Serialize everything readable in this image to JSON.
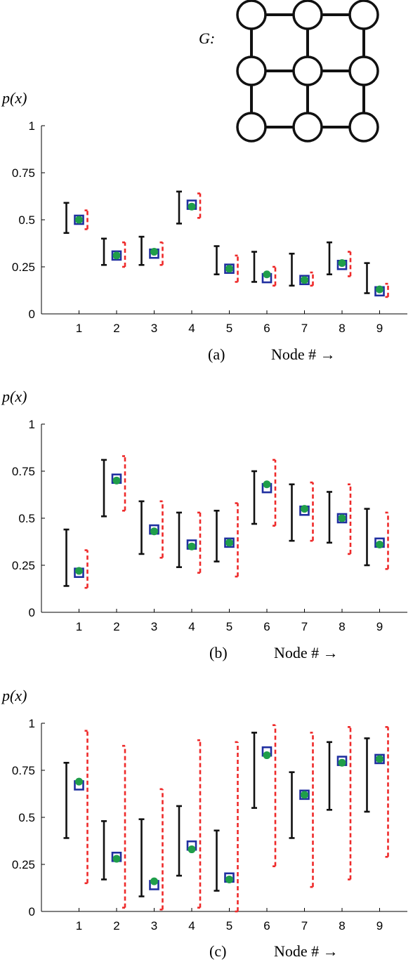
{
  "graph": {
    "label": "G:",
    "rows": 3,
    "cols": 3
  },
  "colors": {
    "interval_black": "#111111",
    "interval_red": "#ee2a2a",
    "square": "#1f2fa0",
    "circle": "#1f9e4a"
  },
  "chart_data": [
    {
      "type": "errorbar",
      "ylabel": "p(x)",
      "caption": "(a)",
      "xlabel": "Node # →",
      "categories": [
        "1",
        "2",
        "3",
        "4",
        "5",
        "6",
        "7",
        "8",
        "9"
      ],
      "ylim": [
        0,
        1
      ],
      "yticks": [
        "0",
        "0.25",
        "0.5",
        "0.75",
        "1"
      ],
      "black_interval": [
        [
          0.43,
          0.59
        ],
        [
          0.26,
          0.4
        ],
        [
          0.26,
          0.41
        ],
        [
          0.48,
          0.65
        ],
        [
          0.21,
          0.36
        ],
        [
          0.17,
          0.33
        ],
        [
          0.15,
          0.32
        ],
        [
          0.21,
          0.38
        ],
        [
          0.11,
          0.27
        ]
      ],
      "red_interval": [
        [
          0.45,
          0.55
        ],
        [
          0.25,
          0.38
        ],
        [
          0.26,
          0.38
        ],
        [
          0.51,
          0.64
        ],
        [
          0.17,
          0.31
        ],
        [
          0.15,
          0.25
        ],
        [
          0.15,
          0.22
        ],
        [
          0.2,
          0.33
        ],
        [
          0.09,
          0.16
        ]
      ],
      "squares": [
        0.5,
        0.31,
        0.32,
        0.58,
        0.24,
        0.19,
        0.18,
        0.26,
        0.12
      ],
      "circles": [
        0.5,
        0.31,
        0.33,
        0.57,
        0.24,
        0.21,
        0.18,
        0.27,
        0.13
      ]
    },
    {
      "type": "errorbar",
      "ylabel": "p(x)",
      "caption": "(b)",
      "xlabel": "Node # →",
      "categories": [
        "1",
        "2",
        "3",
        "4",
        "5",
        "6",
        "7",
        "8",
        "9"
      ],
      "ylim": [
        0,
        1
      ],
      "yticks": [
        "0",
        "0.25",
        "0.5",
        "0.75",
        "1"
      ],
      "black_interval": [
        [
          0.14,
          0.44
        ],
        [
          0.51,
          0.81
        ],
        [
          0.31,
          0.59
        ],
        [
          0.24,
          0.53
        ],
        [
          0.27,
          0.54
        ],
        [
          0.47,
          0.75
        ],
        [
          0.38,
          0.68
        ],
        [
          0.37,
          0.64
        ],
        [
          0.25,
          0.55
        ]
      ],
      "red_interval": [
        [
          0.13,
          0.33
        ],
        [
          0.54,
          0.83
        ],
        [
          0.29,
          0.59
        ],
        [
          0.21,
          0.53
        ],
        [
          0.19,
          0.58
        ],
        [
          0.46,
          0.81
        ],
        [
          0.38,
          0.69
        ],
        [
          0.31,
          0.68
        ],
        [
          0.23,
          0.53
        ]
      ],
      "squares": [
        0.21,
        0.71,
        0.44,
        0.36,
        0.37,
        0.66,
        0.54,
        0.5,
        0.37
      ],
      "circles": [
        0.22,
        0.7,
        0.43,
        0.35,
        0.37,
        0.68,
        0.55,
        0.5,
        0.36
      ]
    },
    {
      "type": "errorbar",
      "ylabel": "p(x)",
      "caption": "(c)",
      "xlabel": "Node # →",
      "categories": [
        "1",
        "2",
        "3",
        "4",
        "5",
        "6",
        "7",
        "8",
        "9"
      ],
      "ylim": [
        0,
        1
      ],
      "yticks": [
        "0",
        "0.25",
        "0.5",
        "0.75",
        "1"
      ],
      "black_interval": [
        [
          0.39,
          0.79
        ],
        [
          0.17,
          0.48
        ],
        [
          0.08,
          0.49
        ],
        [
          0.19,
          0.56
        ],
        [
          0.11,
          0.43
        ],
        [
          0.55,
          0.95
        ],
        [
          0.39,
          0.74
        ],
        [
          0.54,
          0.9
        ],
        [
          0.53,
          0.92
        ]
      ],
      "red_interval": [
        [
          0.15,
          0.96
        ],
        [
          0.02,
          0.88
        ],
        [
          0.01,
          0.65
        ],
        [
          0.02,
          0.91
        ],
        [
          0.0,
          0.9
        ],
        [
          0.24,
          0.99
        ],
        [
          0.13,
          0.95
        ],
        [
          0.17,
          0.98
        ],
        [
          0.29,
          0.98
        ]
      ],
      "squares": [
        0.67,
        0.29,
        0.14,
        0.35,
        0.18,
        0.85,
        0.62,
        0.8,
        0.81
      ],
      "circles": [
        0.69,
        0.28,
        0.16,
        0.33,
        0.17,
        0.83,
        0.62,
        0.79,
        0.81
      ]
    }
  ]
}
